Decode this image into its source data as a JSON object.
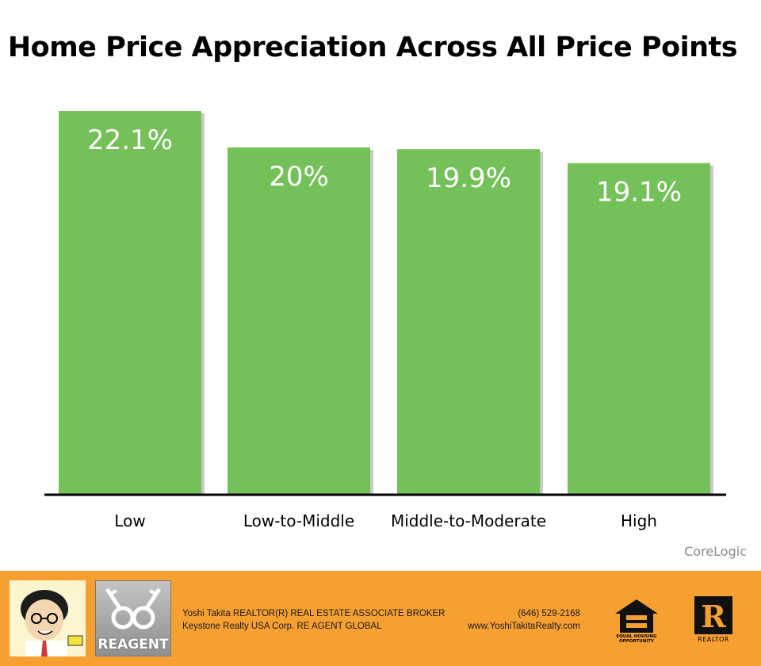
{
  "chart_data": {
    "type": "bar",
    "title": "Home Price Appreciation Across All Price Points",
    "categories": [
      "Low",
      "Low-to-Middle",
      "Middle-to-Moderate",
      "High"
    ],
    "values": [
      22.1,
      20,
      19.9,
      19.1
    ],
    "value_labels": [
      "22.1%",
      "20%",
      "19.9%",
      "19.1%"
    ],
    "xlabel": "",
    "ylabel": "",
    "ylim": [
      0,
      22.1
    ],
    "grid": false,
    "bar_color": "#74c15a",
    "source": "CoreLogic"
  },
  "footer": {
    "background": "#f7a032",
    "agent_line1": "Yoshi Takita REALTOR(R) REAL ESTATE ASSOCIATE BROKER",
    "agent_line2": "Keystone Realty USA Corp.  RE AGENT GLOBAL",
    "phone": "(646) 529-2168",
    "website": "www.YoshiTakitaRealty.com",
    "reagent_logo_text": "REAGENT",
    "eho_text": "EQUAL HOUSING OPPORTUNITY",
    "realtor_mark": "R",
    "realtor_text": "REALTOR"
  }
}
